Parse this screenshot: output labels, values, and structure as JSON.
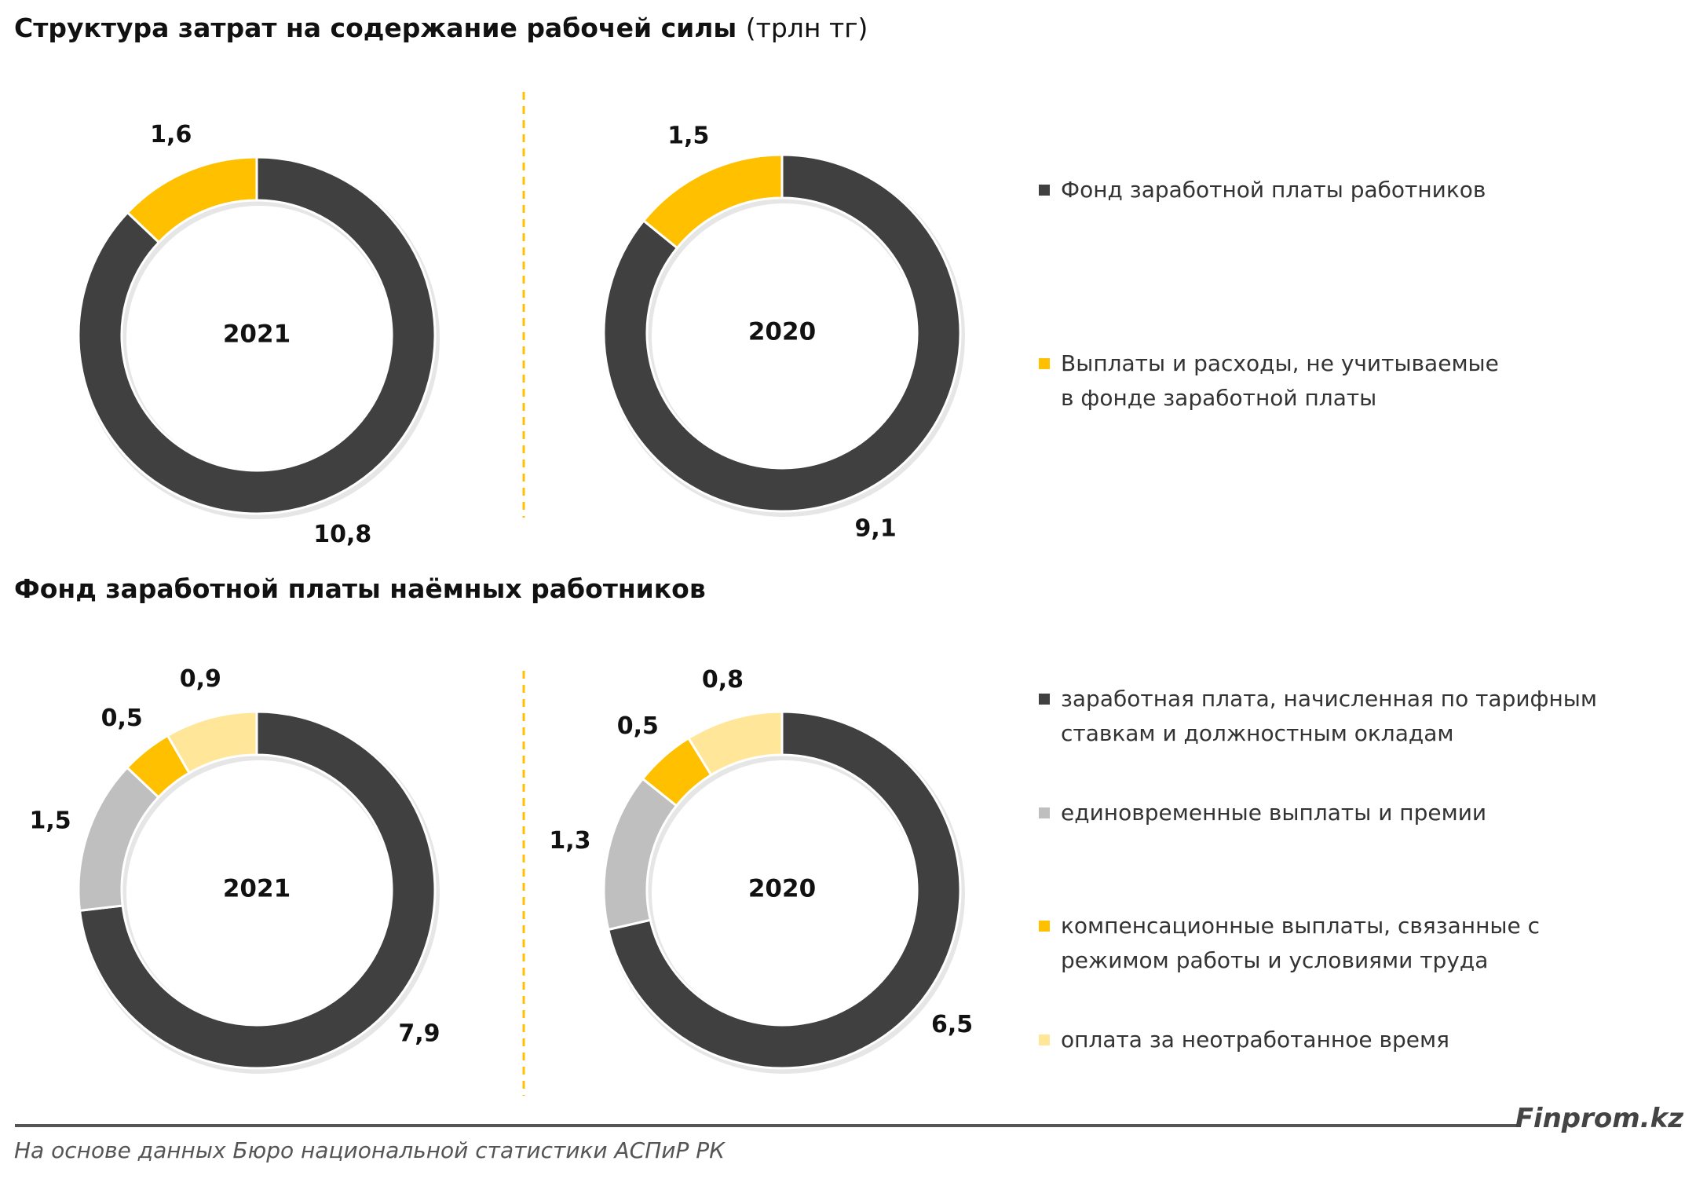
{
  "chart_data": [
    {
      "type": "donut",
      "title": "Структура затрат на содержание рабочей силы",
      "title_note": "(трлн тг)",
      "center_label": "2021",
      "categories": [
        "Фонд заработной платы работников",
        "Выплаты и расходы, не учитываемые в фонде заработной платы"
      ],
      "colors": [
        "#404040",
        "#ffc000"
      ],
      "values": [
        10.8,
        1.6
      ],
      "value_labels": [
        "10,8",
        "1,6"
      ]
    },
    {
      "type": "donut",
      "center_label": "2020",
      "values": [
        9.1,
        1.5
      ],
      "value_labels": [
        "9,1",
        "1,5"
      ]
    },
    {
      "type": "donut",
      "title": "Фонд заработной платы наёмных работников",
      "center_label": "2021",
      "categories": [
        "заработная плата, начисленная по тарифным ставкам и должностным окладам",
        "единовременные выплаты и премии",
        "компенсационные выплаты, связанные с режимом работы и условиями труда",
        "оплата за неотработанное время"
      ],
      "colors": [
        "#404040",
        "#bfbfbf",
        "#ffc000",
        "#ffe699"
      ],
      "values": [
        7.9,
        1.5,
        0.5,
        0.9
      ],
      "value_labels": [
        "7,9",
        "1,5",
        "0,5",
        "0,9"
      ]
    },
    {
      "type": "donut",
      "center_label": "2020",
      "values": [
        6.5,
        1.3,
        0.5,
        0.8
      ],
      "value_labels": [
        "6,5",
        "1,3",
        "0,5",
        "0,8"
      ]
    }
  ],
  "footer": {
    "source": "На основе данных Бюро национальной статистики АСПиР РК",
    "brand": "Finprom.kz"
  }
}
